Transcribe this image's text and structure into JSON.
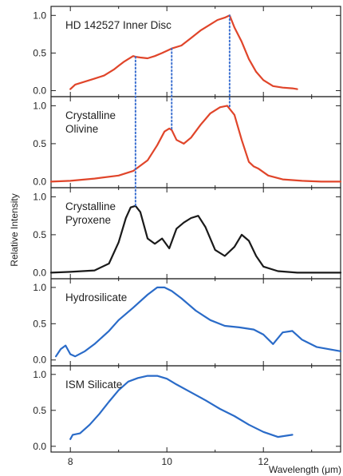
{
  "chart_data": {
    "type": "line",
    "xlabel": "Wavelength (μm)",
    "ylabel": "Relative Intensity",
    "xlim": [
      7.6,
      13.6
    ],
    "x_ticks": [
      "8",
      "10",
      "12"
    ],
    "panels": [
      {
        "label_lines": [
          "HD 142527 Inner Disc"
        ],
        "color": "#e0452a",
        "ylim": [
          -0.08,
          1.12
        ],
        "y_ticks": [
          "0.0",
          "0.5",
          "1.0"
        ],
        "x": [
          8.0,
          8.1,
          8.3,
          8.5,
          8.7,
          8.9,
          9.0,
          9.1,
          9.2,
          9.3,
          9.35,
          9.45,
          9.6,
          9.75,
          9.9,
          10.0,
          10.1,
          10.3,
          10.5,
          10.7,
          10.9,
          11.05,
          11.2,
          11.3,
          11.4,
          11.55,
          11.7,
          11.85,
          12.0,
          12.2,
          12.4,
          12.6,
          12.7
        ],
        "y": [
          0.02,
          0.08,
          0.12,
          0.16,
          0.2,
          0.28,
          0.33,
          0.38,
          0.42,
          0.46,
          0.45,
          0.44,
          0.43,
          0.46,
          0.5,
          0.53,
          0.56,
          0.6,
          0.7,
          0.8,
          0.88,
          0.94,
          0.97,
          1.0,
          0.84,
          0.65,
          0.42,
          0.25,
          0.14,
          0.06,
          0.04,
          0.03,
          0.02
        ]
      },
      {
        "label_lines": [
          "Crystalline",
          "Olivine"
        ],
        "color": "#e0452a",
        "ylim": [
          -0.08,
          1.12
        ],
        "y_ticks": [
          "0.0",
          "0.5",
          "1.0"
        ],
        "x": [
          7.6,
          8.0,
          8.5,
          9.0,
          9.3,
          9.6,
          9.8,
          9.95,
          10.05,
          10.1,
          10.2,
          10.35,
          10.5,
          10.7,
          10.9,
          11.1,
          11.25,
          11.4,
          11.55,
          11.7,
          11.8,
          11.9,
          12.1,
          12.4,
          12.8,
          13.2,
          13.6
        ],
        "y": [
          0.0,
          0.01,
          0.04,
          0.08,
          0.14,
          0.28,
          0.48,
          0.66,
          0.7,
          0.68,
          0.55,
          0.5,
          0.58,
          0.75,
          0.9,
          0.98,
          1.0,
          0.88,
          0.55,
          0.26,
          0.2,
          0.17,
          0.08,
          0.03,
          0.01,
          0.0,
          0.0
        ]
      },
      {
        "label_lines": [
          "Crystalline",
          "Pyroxene"
        ],
        "color": "#1a1a1a",
        "ylim": [
          -0.08,
          1.12
        ],
        "y_ticks": [
          "0.0",
          "0.5",
          "1.0"
        ],
        "x": [
          7.6,
          8.0,
          8.5,
          8.8,
          9.0,
          9.15,
          9.25,
          9.35,
          9.45,
          9.6,
          9.75,
          9.9,
          10.05,
          10.2,
          10.35,
          10.5,
          10.65,
          10.8,
          11.0,
          11.2,
          11.4,
          11.55,
          11.7,
          11.85,
          12.0,
          12.3,
          12.7,
          13.2,
          13.6
        ],
        "y": [
          0.0,
          0.01,
          0.03,
          0.12,
          0.4,
          0.72,
          0.86,
          0.88,
          0.8,
          0.45,
          0.38,
          0.45,
          0.32,
          0.58,
          0.66,
          0.72,
          0.75,
          0.6,
          0.3,
          0.22,
          0.34,
          0.5,
          0.42,
          0.22,
          0.08,
          0.02,
          0.0,
          0.0,
          0.0
        ]
      },
      {
        "label_lines": [
          "Hydrosilicate"
        ],
        "color": "#2a6bc8",
        "ylim": [
          -0.08,
          1.12
        ],
        "y_ticks": [
          "0.0",
          "0.5",
          "1.0"
        ],
        "x": [
          7.7,
          7.8,
          7.9,
          8.0,
          8.1,
          8.3,
          8.5,
          8.8,
          9.0,
          9.3,
          9.6,
          9.8,
          9.95,
          10.1,
          10.3,
          10.6,
          10.9,
          11.2,
          11.5,
          11.8,
          12.0,
          12.2,
          12.4,
          12.6,
          12.8,
          13.1,
          13.6
        ],
        "y": [
          0.05,
          0.15,
          0.2,
          0.08,
          0.05,
          0.12,
          0.22,
          0.4,
          0.55,
          0.72,
          0.9,
          1.0,
          1.0,
          0.95,
          0.85,
          0.68,
          0.55,
          0.47,
          0.45,
          0.42,
          0.35,
          0.22,
          0.38,
          0.4,
          0.28,
          0.18,
          0.12
        ]
      },
      {
        "label_lines": [
          "ISM Silicate"
        ],
        "color": "#2a6bc8",
        "ylim": [
          -0.08,
          1.12
        ],
        "y_ticks": [
          "0.0",
          "0.5",
          "1.0"
        ],
        "x": [
          8.0,
          8.05,
          8.2,
          8.4,
          8.6,
          8.8,
          9.0,
          9.2,
          9.4,
          9.6,
          9.8,
          10.0,
          10.2,
          10.5,
          10.8,
          11.1,
          11.4,
          11.7,
          12.0,
          12.3,
          12.6
        ],
        "y": [
          0.1,
          0.16,
          0.18,
          0.3,
          0.45,
          0.62,
          0.78,
          0.9,
          0.95,
          0.98,
          0.98,
          0.94,
          0.86,
          0.75,
          0.64,
          0.52,
          0.42,
          0.3,
          0.2,
          0.13,
          0.16
        ]
      }
    ],
    "marker_lines": [
      {
        "x": 9.35,
        "from_panel": 0,
        "to_panel": 2,
        "color": "#3a6fd0",
        "style": "dotted"
      },
      {
        "x": 10.1,
        "from_panel": 0,
        "to_panel": 1,
        "color": "#3a6fd0",
        "style": "dotted"
      },
      {
        "x": 11.3,
        "from_panel": 0,
        "to_panel": 1,
        "color": "#3a6fd0",
        "style": "dotted"
      }
    ]
  }
}
